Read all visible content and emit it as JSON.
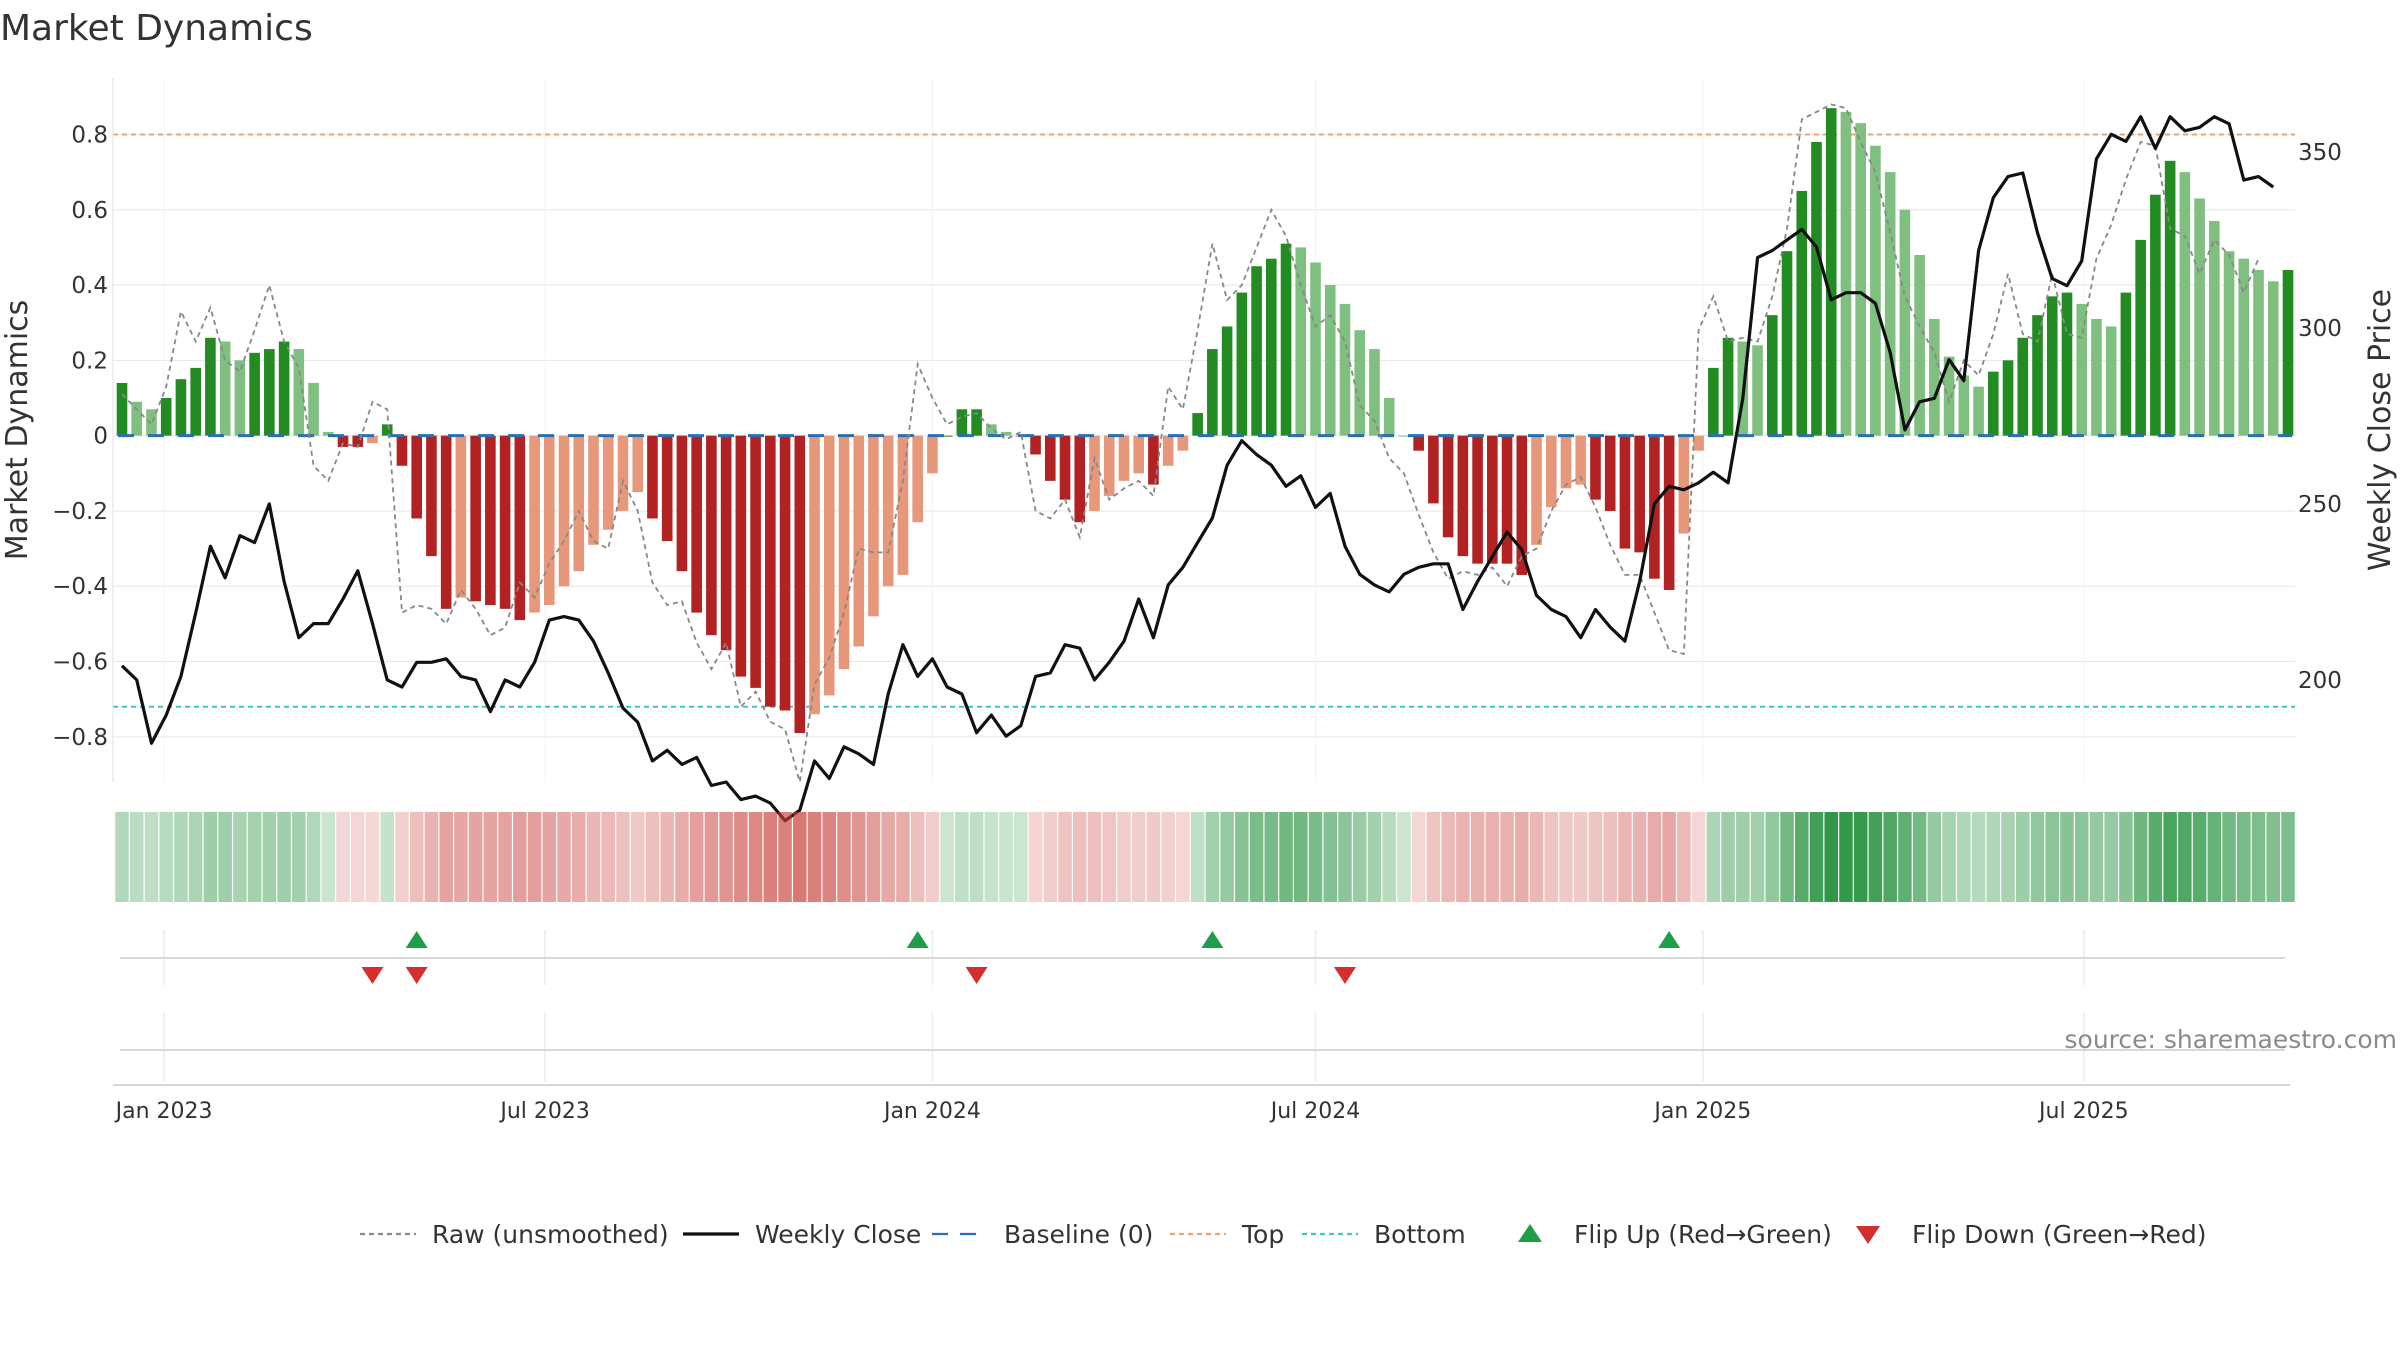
{
  "chart_data": {
    "type": "bar",
    "title": "Market Dynamics",
    "ylabel_left": "Market Dynamics",
    "ylabel_right": "Weekly Close Price",
    "ylim_left": [
      -0.92,
      0.95
    ],
    "yticks_left": [
      -0.8,
      -0.6,
      -0.4,
      -0.2,
      0,
      0.2,
      0.4,
      0.6,
      0.8
    ],
    "ytick_labels_left": [
      "−0.8",
      "−0.6",
      "−0.4",
      "−0.2",
      "0",
      "0.2",
      "0.4",
      "0.6",
      "0.8"
    ],
    "ylim_right": [
      171,
      371
    ],
    "yticks_right": [
      200,
      250,
      300,
      350
    ],
    "ytick_labels_right": [
      "200",
      "250",
      "300",
      "350"
    ],
    "x_start": "2022-12-12",
    "x_step_days": 7,
    "xticks": [
      {
        "date": "2023-01-01",
        "label": "Jan 2023"
      },
      {
        "date": "2023-07-01",
        "label": "Jul 2023"
      },
      {
        "date": "2024-01-01",
        "label": "Jan 2024"
      },
      {
        "date": "2024-07-01",
        "label": "Jul 2024"
      },
      {
        "date": "2025-01-01",
        "label": "Jan 2025"
      },
      {
        "date": "2025-07-01",
        "label": "Jul 2025"
      }
    ],
    "top_level": 0.8,
    "bottom_level": -0.72,
    "baseline": 0,
    "smoothed": [
      0.14,
      0.09,
      0.07,
      0.1,
      0.15,
      0.18,
      0.26,
      0.25,
      0.2,
      0.22,
      0.23,
      0.25,
      0.23,
      0.14,
      0.01,
      -0.03,
      -0.03,
      -0.02,
      0.03,
      -0.08,
      -0.22,
      -0.32,
      -0.46,
      -0.43,
      -0.44,
      -0.45,
      -0.46,
      -0.49,
      -0.47,
      -0.45,
      -0.4,
      -0.36,
      -0.29,
      -0.25,
      -0.2,
      -0.15,
      -0.22,
      -0.28,
      -0.36,
      -0.47,
      -0.53,
      -0.57,
      -0.64,
      -0.67,
      -0.72,
      -0.73,
      -0.79,
      -0.74,
      -0.69,
      -0.62,
      -0.56,
      -0.48,
      -0.4,
      -0.37,
      -0.23,
      -0.1,
      0,
      0.07,
      0.07,
      0.03,
      0.01,
      0,
      -0.05,
      -0.12,
      -0.17,
      -0.23,
      -0.2,
      -0.16,
      -0.12,
      -0.1,
      -0.13,
      -0.08,
      -0.04,
      0.06,
      0.23,
      0.29,
      0.38,
      0.45,
      0.47,
      0.51,
      0.5,
      0.46,
      0.4,
      0.35,
      0.28,
      0.23,
      0.1,
      0,
      -0.04,
      -0.18,
      -0.27,
      -0.32,
      -0.34,
      -0.34,
      -0.34,
      -0.37,
      -0.29,
      -0.19,
      -0.14,
      -0.13,
      -0.17,
      -0.2,
      -0.3,
      -0.31,
      -0.38,
      -0.41,
      -0.26,
      -0.04,
      0.18,
      0.26,
      0.25,
      0.24,
      0.32,
      0.49,
      0.65,
      0.78,
      0.87,
      0.86,
      0.83,
      0.77,
      0.7,
      0.6,
      0.48,
      0.31,
      0.21,
      0.16,
      0.13,
      0.17,
      0.2,
      0.26,
      0.32,
      0.37,
      0.38,
      0.35,
      0.31,
      0.29,
      0.38,
      0.52,
      0.64,
      0.73,
      0.7,
      0.63,
      0.57,
      0.49,
      0.47,
      0.44,
      0.41,
      0.44
    ],
    "raw": [
      0.11,
      0.07,
      0.03,
      0.13,
      0.33,
      0.25,
      0.34,
      0.2,
      0.17,
      0.28,
      0.4,
      0.25,
      0.18,
      -0.08,
      -0.12,
      -0.02,
      -0.03,
      0.09,
      0.07,
      -0.47,
      -0.45,
      -0.46,
      -0.5,
      -0.41,
      -0.46,
      -0.53,
      -0.51,
      -0.39,
      -0.43,
      -0.34,
      -0.28,
      -0.2,
      -0.28,
      -0.3,
      -0.12,
      -0.2,
      -0.39,
      -0.45,
      -0.44,
      -0.55,
      -0.62,
      -0.55,
      -0.72,
      -0.68,
      -0.76,
      -0.78,
      -0.92,
      -0.66,
      -0.59,
      -0.47,
      -0.3,
      -0.31,
      -0.31,
      -0.12,
      0.19,
      0.1,
      0.03,
      0.05,
      0.06,
      0.02,
      -0.01,
      0.01,
      -0.2,
      -0.22,
      -0.17,
      -0.27,
      -0.06,
      -0.17,
      -0.14,
      -0.12,
      -0.16,
      0.13,
      0.07,
      0.28,
      0.51,
      0.36,
      0.4,
      0.5,
      0.6,
      0.53,
      0.4,
      0.29,
      0.32,
      0.25,
      0.08,
      0.04,
      -0.06,
      -0.1,
      -0.21,
      -0.31,
      -0.38,
      -0.36,
      -0.37,
      -0.35,
      -0.4,
      -0.32,
      -0.3,
      -0.2,
      -0.13,
      -0.11,
      -0.19,
      -0.29,
      -0.37,
      -0.37,
      -0.47,
      -0.57,
      -0.58,
      0.28,
      0.37,
      0.25,
      0.26,
      0.25,
      0.37,
      0.55,
      0.84,
      0.86,
      0.88,
      0.87,
      0.78,
      0.7,
      0.54,
      0.37,
      0.29,
      0.22,
      0.09,
      0.2,
      0.16,
      0.27,
      0.43,
      0.27,
      0.25,
      0.43,
      0.27,
      0.26,
      0.47,
      0.56,
      0.68,
      0.78,
      0.77,
      0.55,
      0.53,
      0.43,
      0.52,
      0.48,
      0.38,
      0.47
    ],
    "weekly_close": [
      204,
      200,
      182,
      190,
      201,
      219,
      238,
      229,
      241,
      239,
      250,
      228,
      212,
      216,
      216,
      223,
      231,
      216,
      200,
      198,
      205,
      205,
      206,
      201,
      200,
      191,
      200,
      198,
      205,
      217,
      218,
      217,
      211,
      202,
      192,
      188,
      177,
      180,
      176,
      178,
      170,
      171,
      166,
      167,
      165,
      160,
      163,
      177,
      172,
      181,
      179,
      176,
      196,
      210,
      201,
      206,
      198,
      196,
      185,
      190,
      184,
      187,
      201,
      202,
      210,
      209,
      200,
      205,
      211,
      223,
      212,
      227,
      232,
      239,
      246,
      261,
      268,
      264,
      261,
      255,
      258,
      249,
      253,
      238,
      230,
      227,
      225,
      230,
      232,
      233,
      233,
      220,
      228,
      235,
      242,
      237,
      224,
      220,
      218,
      212,
      220,
      215,
      211,
      228,
      250,
      255,
      254,
      256,
      259,
      256,
      280,
      320,
      322,
      325,
      328,
      323,
      308,
      310,
      310,
      307,
      293,
      271,
      279,
      280,
      291,
      285,
      322,
      337,
      343,
      344,
      327,
      314,
      312,
      319,
      348,
      355,
      353,
      360,
      351,
      360,
      356,
      357,
      360,
      358,
      342,
      343,
      340
    ],
    "flips_up": [
      "2023-05-01",
      "2023-12-25",
      "2024-05-13",
      "2024-12-16"
    ],
    "flips_down": [
      "2023-04-10",
      "2023-05-01",
      "2024-01-22",
      "2024-07-15"
    ],
    "legend": [
      {
        "label": "Raw (unsmoothed)",
        "kind": "dotted-line",
        "color": "#888888"
      },
      {
        "label": "Weekly Close",
        "kind": "line",
        "color": "#111111"
      },
      {
        "label": "Baseline (0)",
        "kind": "dashed-line",
        "color": "#2a6fb0"
      },
      {
        "label": "Top",
        "kind": "dotted-line",
        "color": "#f0a36a"
      },
      {
        "label": "Bottom",
        "kind": "dotted-line",
        "color": "#3dc7c0"
      },
      {
        "label": "Flip Up (Red→Green)",
        "kind": "triangle-up",
        "color": "#1f9d48"
      },
      {
        "label": "Flip Down (Green→Red)",
        "kind": "triangle-down",
        "color": "#d32f2f"
      }
    ],
    "legend_position": "bottom-center",
    "grid": true
  },
  "colors": {
    "bull_strong": "#228b22",
    "bull_soft": "#7fbf7f",
    "bear_strong": "#b22222",
    "bear_soft": "#e8987a",
    "raw": "#888888",
    "close": "#111111",
    "baseline": "#2a6fb0",
    "top": "#f0a36a",
    "bottom": "#3dc7c0",
    "flip_up": "#1f9d48",
    "flip_down": "#d32f2f",
    "grid": "#e6e6e6"
  },
  "source_text": "source: sharemaestro.com"
}
